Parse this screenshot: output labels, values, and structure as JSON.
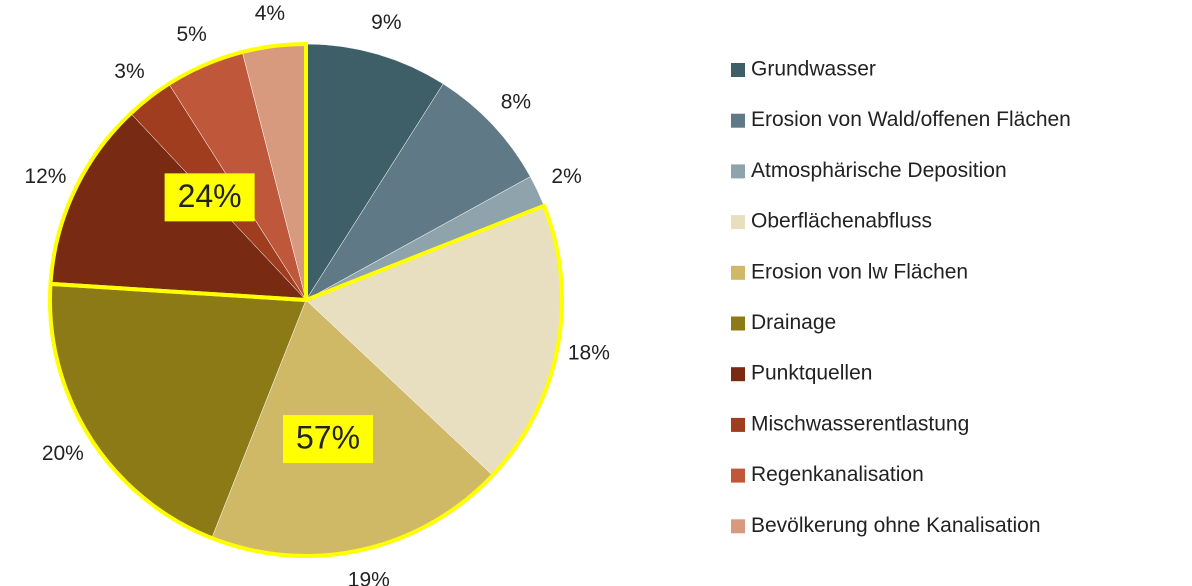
{
  "chart_data": {
    "type": "pie",
    "categories": [
      "Grundwasser",
      "Erosion von Wald/offenen Flächen",
      "Atmosphärische Deposition",
      "Oberflächenabfluss",
      "Erosion von lw Flächen",
      "Drainage",
      "Punktquellen",
      "Mischwasserentlastung",
      "Regenkanalisation",
      "Bevölkerung ohne Kanalisation"
    ],
    "values": [
      9,
      8,
      2,
      18,
      19,
      20,
      12,
      3,
      5,
      4
    ],
    "value_labels": [
      "9%",
      "8%",
      "2%",
      "18%",
      "19%",
      "20%",
      "12%",
      "3%",
      "5%",
      "4%"
    ],
    "colors": [
      "#3e5f67",
      "#5f7a86",
      "#8fa3ac",
      "#e8dfc0",
      "#cfb966",
      "#8b7a16",
      "#782a12",
      "#a03d1f",
      "#bf583a",
      "#d79a7f"
    ],
    "highlights": [
      {
        "value": 57,
        "label": "57%",
        "categories": [
          "Oberflächenabfluss",
          "Erosion von lw Flächen",
          "Drainage"
        ]
      },
      {
        "value": 24,
        "label": "24%",
        "categories": [
          "Punktquellen",
          "Mischwasserentlastung",
          "Regenkanalisation",
          "Bevölkerung ohne Kanalisation"
        ]
      }
    ],
    "highlight_color": "#ffff00",
    "legend": "right"
  }
}
